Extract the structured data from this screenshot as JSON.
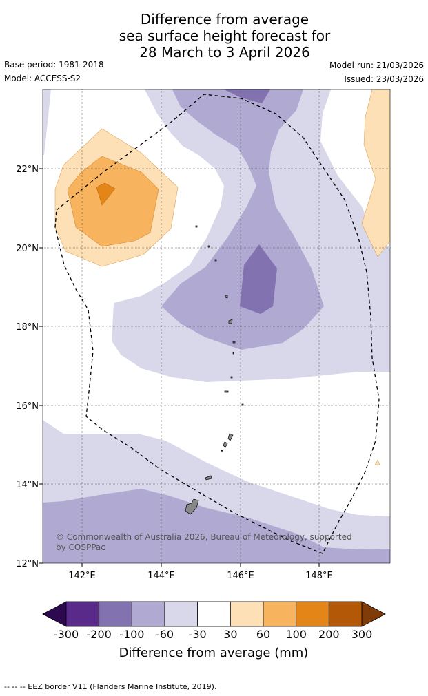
{
  "title": {
    "line1": "Difference from average",
    "line2": "sea surface height forecast for",
    "line3": "28 March to 3 April 2026"
  },
  "meta": {
    "base_period": "Base period: 1981-2018",
    "model": "Model: ACCESS-S2",
    "model_run": "Model run: 21/03/2026",
    "issued": "Issued: 23/03/2026"
  },
  "map": {
    "lon_ticks": [
      "142°E",
      "144°E",
      "146°E",
      "148°E"
    ],
    "lat_ticks": [
      "22°N",
      "20°N",
      "18°N",
      "16°N",
      "14°N",
      "12°N"
    ],
    "copyright_line1": "© Commonwealth of Australia 2026, Bureau of Meteorology, supported",
    "copyright_line2": "by COSPPac"
  },
  "colorbar": {
    "labels": [
      "-300",
      "-200",
      "-100",
      "-60",
      "-30",
      "30",
      "60",
      "100",
      "200",
      "300"
    ],
    "colors": [
      "#2d0a4f",
      "#5a2a8a",
      "#8272b0",
      "#b0a9d2",
      "#d9d8ea",
      "#ffffff",
      "#fde0b6",
      "#f8b35e",
      "#e38517",
      "#b35806",
      "#7f3b08"
    ],
    "title": "Difference from average (mm)"
  },
  "legend": {
    "eez_line": "--  --  -- EEZ border V11 (Flanders Marine Institute, 2019)."
  }
}
